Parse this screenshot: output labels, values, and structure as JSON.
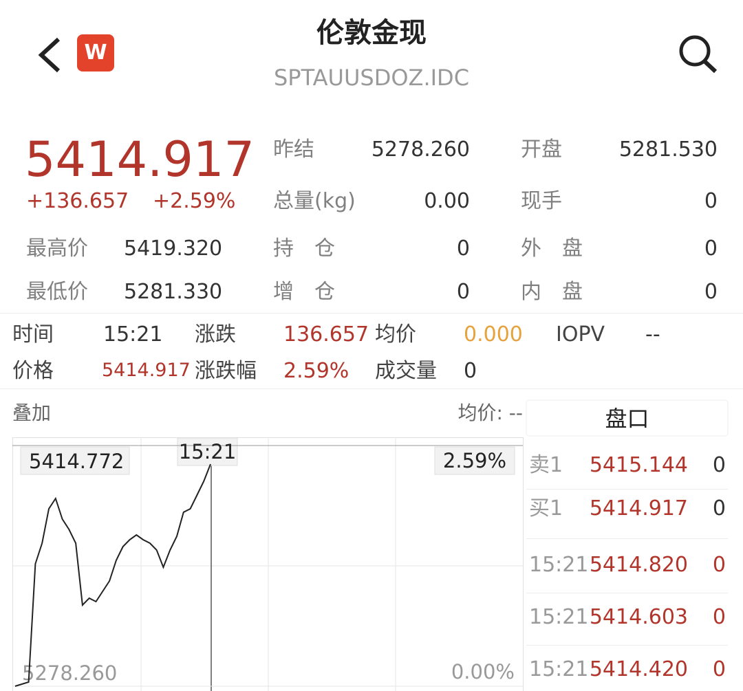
{
  "header": {
    "logo": "W",
    "title": "伦敦金现",
    "code": "SPTAUUSDOZ.IDC"
  },
  "quote": {
    "price": "5414.917",
    "change": "+136.657",
    "change_pct": "+2.59%"
  },
  "stats": [
    {
      "label": "昨结",
      "value": "5278.260"
    },
    {
      "label": "开盘",
      "value": "5281.530"
    },
    {
      "label": "总量(kg)",
      "value": "0.00"
    },
    {
      "label": "现手",
      "value": "0"
    },
    {
      "label": "最高价",
      "value": "5419.320"
    },
    {
      "label": "持　仓",
      "value": "0"
    },
    {
      "label": "外　盘",
      "value": "0"
    },
    {
      "label": "最低价",
      "value": "5281.330"
    },
    {
      "label": "增　仓",
      "value": "0"
    },
    {
      "label": "内　盘",
      "value": "0"
    }
  ],
  "info": [
    {
      "label": "时间",
      "value": "15:21"
    },
    {
      "label": "涨跌",
      "value": "136.657"
    },
    {
      "label": "均价",
      "value": "0.000"
    },
    {
      "label": "IOPV",
      "value": "--"
    },
    {
      "label": "价格",
      "value": "5414.917"
    },
    {
      "label": "涨跌幅",
      "value": "2.59%"
    },
    {
      "label": "成交量",
      "value": "0"
    }
  ],
  "chart_data": {
    "type": "line",
    "overlay": "叠加",
    "avg_label": "均价: --",
    "cursor_time": "15:21",
    "top_pct": "2.59%",
    "bottom_pct": "0.00%",
    "ylim": [
      5278.26,
      5414.772
    ],
    "yticks": [
      {
        "value": 5278.26,
        "label": "5278.260"
      },
      {
        "value": 5414.772,
        "label": "5414.772"
      }
    ],
    "color": "#222222",
    "values": [
      5278.26,
      5279.43,
      5280.6,
      5347.69,
      5359.39,
      5378.89,
      5384.74,
      5373.04,
      5367.19,
      5359.39,
      5324.28,
      5328.18,
      5326.23,
      5332.08,
      5337.93,
      5349.64,
      5357.44,
      5361.34,
      5364.07,
      5361.34,
      5359.39,
      5355.49,
      5345.74,
      5355.49,
      5363.29,
      5376.94,
      5378.89,
      5386.69,
      5394.49,
      5404.24
    ]
  },
  "orderbook": {
    "title": "盘口",
    "asks": [
      {
        "label": "卖1",
        "price": "5415.144",
        "volume": "0"
      }
    ],
    "bids": [
      {
        "label": "买1",
        "price": "5414.917",
        "volume": "0"
      }
    ],
    "trades": [
      {
        "time": "15:21",
        "price": "5414.820",
        "volume": "0"
      },
      {
        "time": "15:21",
        "price": "5414.603",
        "volume": "0"
      },
      {
        "time": "15:21",
        "price": "5414.420",
        "volume": "0"
      }
    ]
  }
}
